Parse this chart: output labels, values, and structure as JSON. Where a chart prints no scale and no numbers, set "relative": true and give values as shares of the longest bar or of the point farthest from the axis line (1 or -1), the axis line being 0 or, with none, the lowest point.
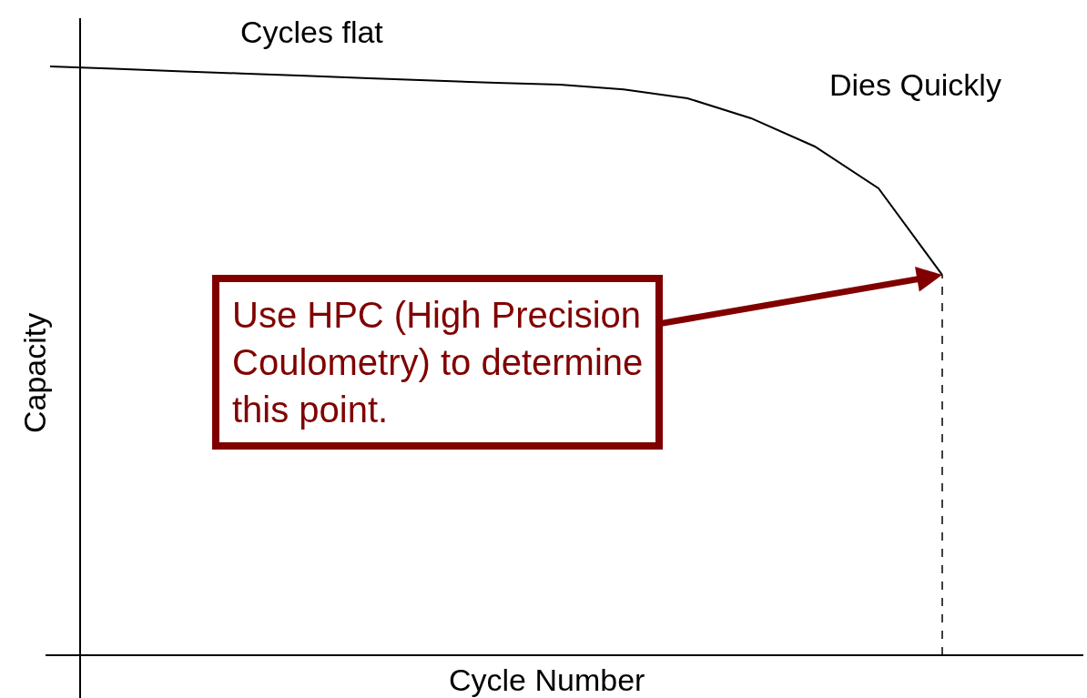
{
  "chart_data": {
    "type": "line",
    "relative": true,
    "xlabel": "Cycle Number",
    "ylabel": "Capacity",
    "categories": [
      null,
      null,
      null,
      null,
      null,
      null,
      null,
      null,
      null,
      null,
      null,
      null,
      null,
      null,
      null
    ],
    "series": [
      {
        "color": "#000000",
        "values": [
          1,
          0.996,
          0.992,
          0.988,
          0.984,
          0.98,
          0.976,
          0.972,
          0.969,
          0.961,
          0.946,
          0.912,
          0.864,
          0.793,
          0.646
        ]
      }
    ],
    "ref_lines": [
      {
        "axis": "x",
        "color": "#000000",
        "line_style": "dashed"
      }
    ],
    "annotations": [
      "Cycles flat",
      "Dies Quickly",
      "Use HPC (High Precision\nCoulometry) to determine\nthis point."
    ],
    "marker": "none",
    "line_style": "solid"
  }
}
